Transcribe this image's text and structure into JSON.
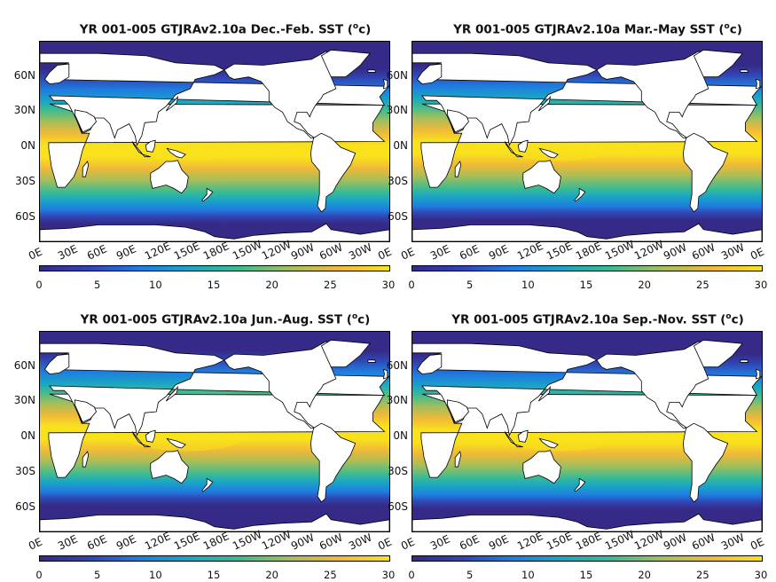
{
  "panels": [
    {
      "title_pre": "YR 001-005 GTJRAv2.10a Dec.-Feb. SST (",
      "title_sup": "o",
      "title_post": "c)"
    },
    {
      "title_pre": "YR 001-005 GTJRAv2.10a Mar.-May SST (",
      "title_sup": "o",
      "title_post": "c)"
    },
    {
      "title_pre": "YR 001-005 GTJRAv2.10a Jun.-Aug. SST (",
      "title_sup": "o",
      "title_post": "c)"
    },
    {
      "title_pre": "YR 001-005 GTJRAv2.10a Sep.-Nov. SST (",
      "title_sup": "o",
      "title_post": "c)"
    }
  ],
  "axes": {
    "ylabels": [
      "60N",
      "30N",
      "0N",
      "30S",
      "60S"
    ],
    "xlabels": [
      "0E",
      "30E",
      "60E",
      "90E",
      "120E",
      "150E",
      "180E",
      "150W",
      "120W",
      "90W",
      "60W",
      "30W",
      "0E"
    ],
    "colorbar_ticks": [
      "0",
      "5",
      "10",
      "15",
      "20",
      "25",
      "30"
    ],
    "colorbar_range": [
      0,
      30
    ],
    "lat_range": [
      -80,
      90
    ],
    "lon_range": [
      0,
      360
    ]
  },
  "colormap": [
    "#352a87",
    "#3145b3",
    "#1f7de0",
    "#1aa6c4",
    "#3cbb92",
    "#a4be5b",
    "#f0b938",
    "#f9e21c"
  ],
  "land_color": "#ffffff",
  "coastline_color": "#000000"
}
